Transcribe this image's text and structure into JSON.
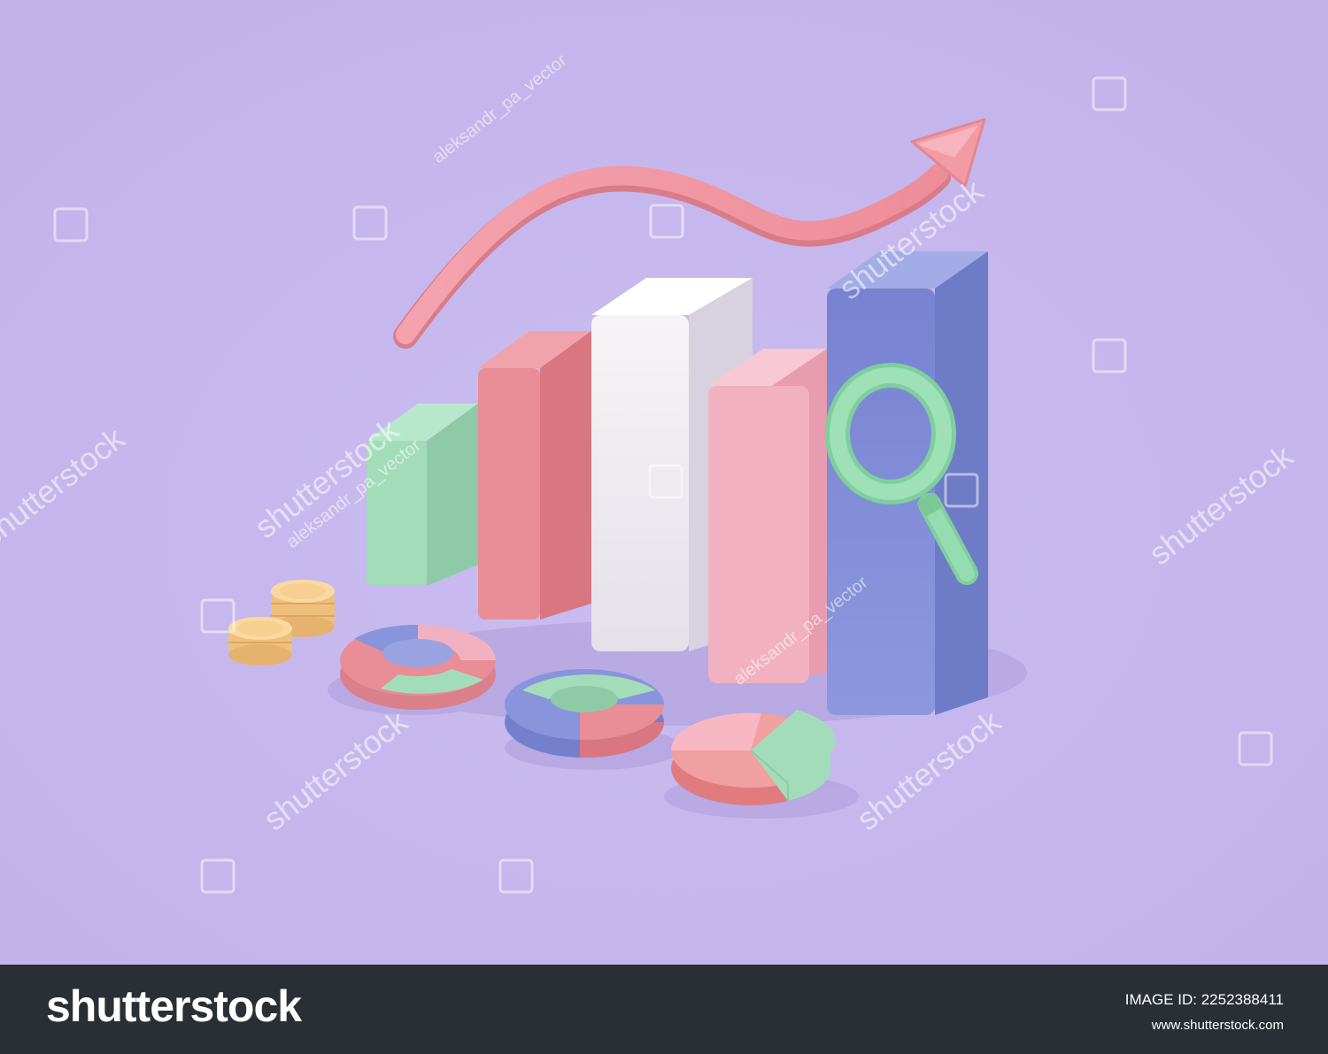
{
  "watermark": {
    "brand": "shutterstock",
    "author": "aleksandr_pa_vector"
  },
  "footer": {
    "brand": "shutterstock",
    "image_id": "IMAGE ID: 2252388411",
    "site": "www.shutterstock.com"
  },
  "colors": {
    "background": "#c7b9ee",
    "footer": "#2a2f36",
    "green": "#a3dcb9",
    "red": "#e98d96",
    "white": "#f3f0f4",
    "pink": "#f2b1c1",
    "blue": "#8894dc",
    "arrow": "#f29ba5",
    "coin": "#f6cf91"
  }
}
